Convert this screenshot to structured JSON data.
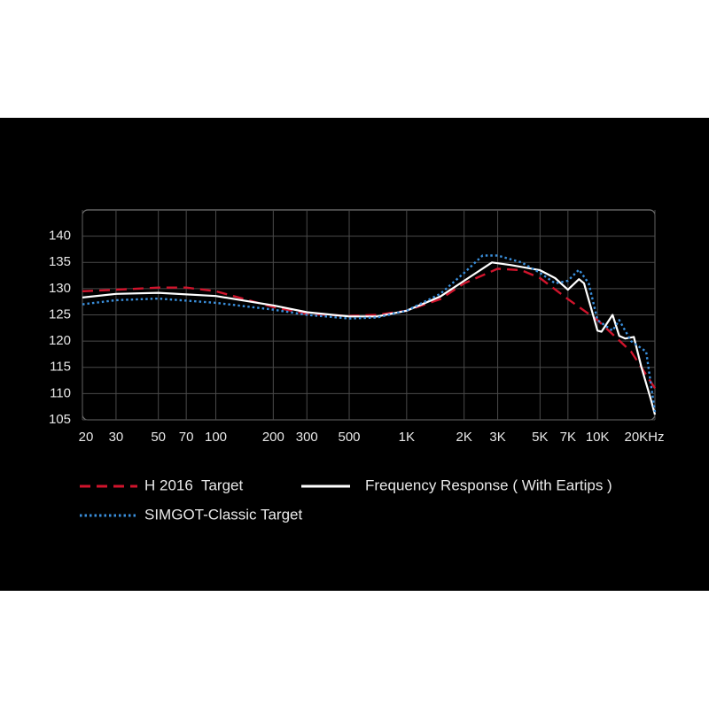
{
  "chart_data": {
    "type": "line",
    "xscale": "log",
    "xlim": [
      20,
      20000
    ],
    "ylim": [
      105,
      145
    ],
    "xticks": [
      20,
      30,
      50,
      70,
      100,
      200,
      300,
      500,
      {
        "value": 1000,
        "label": "1K"
      },
      {
        "value": 2000,
        "label": "2K"
      },
      {
        "value": 3000,
        "label": "3K"
      },
      {
        "value": 5000,
        "label": "5K"
      },
      {
        "value": 7000,
        "label": "7K"
      },
      {
        "value": 10000,
        "label": "10K"
      },
      {
        "value": 20000,
        "label": "20KHz"
      }
    ],
    "yticks": [
      105,
      110,
      115,
      120,
      125,
      130,
      135,
      140
    ],
    "grid": true,
    "series": [
      {
        "name": "H 2016  Target",
        "color": "#d0142c",
        "style": "dashed",
        "x": [
          20,
          30,
          50,
          70,
          100,
          200,
          300,
          500,
          700,
          1000,
          1500,
          2000,
          3000,
          4000,
          5000,
          7000,
          10000,
          15000,
          20000
        ],
        "values": [
          129.5,
          129.8,
          130.2,
          130.2,
          129.5,
          126.5,
          125.2,
          124.8,
          125,
          125.8,
          128,
          131,
          133.8,
          133.5,
          132,
          128,
          124,
          118,
          111
        ]
      },
      {
        "name": "Frequency Response ( With Eartips )",
        "color": "#ffffff",
        "style": "solid",
        "x": [
          20,
          30,
          50,
          100,
          200,
          300,
          500,
          700,
          1000,
          1500,
          2000,
          2800,
          3500,
          5000,
          6000,
          7000,
          8000,
          8500,
          10000,
          10500,
          12000,
          13000,
          14000,
          15500,
          17000,
          19000,
          20000
        ],
        "values": [
          128.3,
          129,
          129.2,
          128.6,
          126.8,
          125.5,
          124.7,
          124.7,
          125.8,
          128.5,
          131.5,
          135,
          134.5,
          133.5,
          132,
          129.8,
          131.8,
          131,
          122,
          121.8,
          125,
          121,
          120.5,
          120.8,
          115,
          109,
          106
        ]
      },
      {
        "name": "SIMGOT-Classic Target",
        "color": "#3a8fdc",
        "style": "dotted",
        "x": [
          20,
          30,
          50,
          100,
          200,
          300,
          500,
          700,
          1000,
          1500,
          2000,
          2500,
          3000,
          4000,
          5000,
          6000,
          7000,
          8000,
          9000,
          10000,
          12000,
          13000,
          15000,
          18000,
          20000
        ],
        "values": [
          127,
          127.8,
          128.1,
          127.3,
          126,
          125,
          124.3,
          124.5,
          125.8,
          129,
          133,
          136.3,
          136.3,
          135,
          133,
          131,
          131.5,
          133.6,
          131,
          124,
          122,
          124,
          120,
          118,
          106.5
        ]
      }
    ]
  }
}
